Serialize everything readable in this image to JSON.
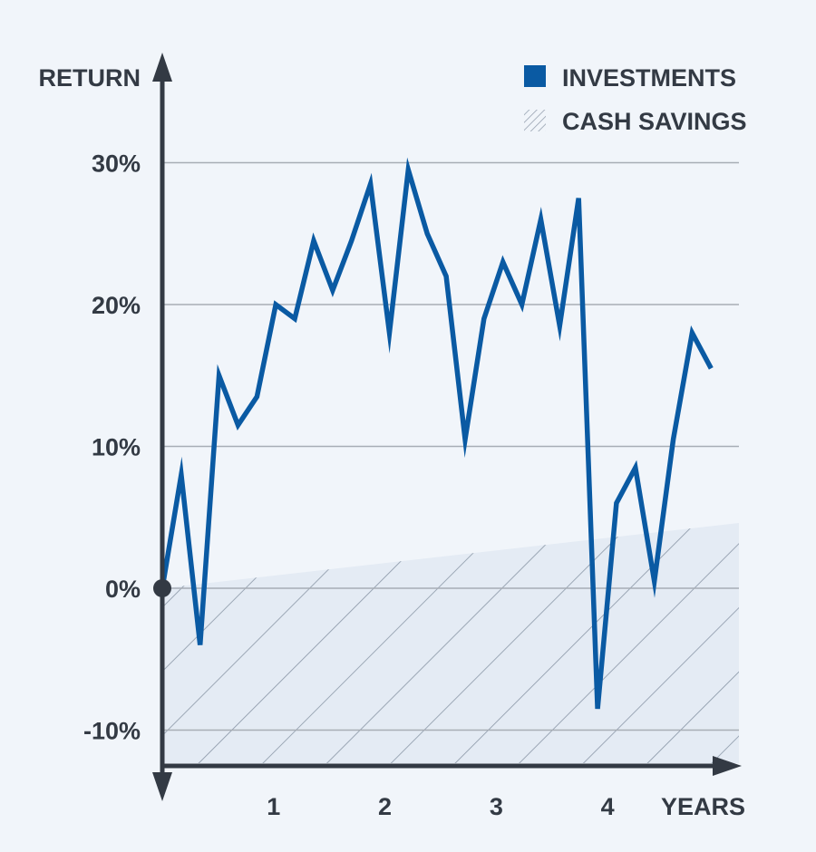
{
  "chart_data": {
    "type": "line",
    "ylabel": "RETURN",
    "xlabel": "YEARS",
    "x_ticks": [
      "1",
      "2",
      "3",
      "4"
    ],
    "y_ticks": [
      "30%",
      "20%",
      "10%",
      "0%",
      "-10%"
    ],
    "y_tick_values": [
      30,
      20,
      10,
      0,
      -10
    ],
    "xlim": [
      0,
      5.18
    ],
    "ylim": [
      -12.3,
      36
    ],
    "grid": true,
    "legend_position": "top-right",
    "series": [
      {
        "name": "INVESTMENTS",
        "kind": "line",
        "color": "#0a5aa3",
        "x": [
          0,
          0.17,
          0.34,
          0.51,
          0.68,
          0.85,
          1.02,
          1.19,
          1.36,
          1.53,
          1.7,
          1.87,
          2.04,
          2.21,
          2.38,
          2.55,
          2.72,
          2.89,
          3.06,
          3.23,
          3.4,
          3.57,
          3.74,
          3.91,
          4.08,
          4.25,
          4.42,
          4.59,
          4.76,
          4.93
        ],
        "y": [
          0,
          8,
          -4,
          15,
          11.5,
          13.5,
          20,
          19,
          24.5,
          21,
          24.5,
          28.5,
          18,
          29.5,
          25,
          22,
          10.5,
          19,
          23,
          20,
          26,
          18.5,
          27.5,
          -8.5,
          6,
          8.5,
          0.5,
          10.5,
          18,
          15.5
        ]
      },
      {
        "name": "CASH SAVINGS",
        "kind": "hatched-area",
        "color": "#8a96a6",
        "fill": "#e4ebf4",
        "x": [
          0,
          5.18
        ],
        "y": [
          0,
          4.6
        ]
      }
    ]
  }
}
